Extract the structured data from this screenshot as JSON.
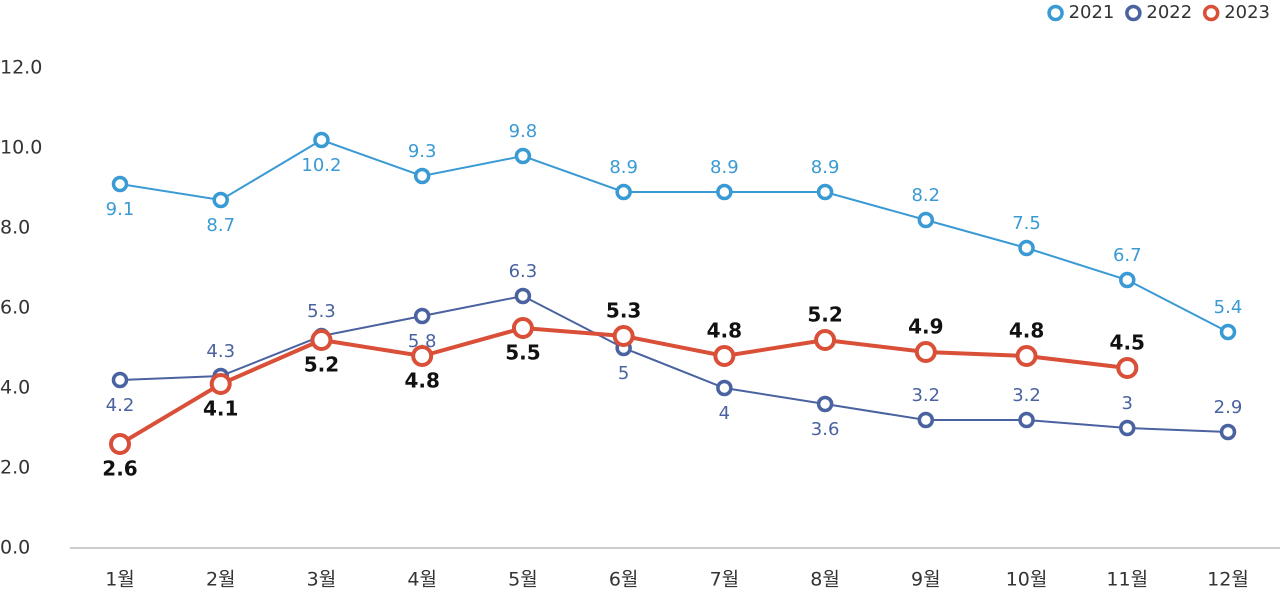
{
  "chart_data": {
    "type": "line",
    "categories": [
      "1월",
      "2월",
      "3월",
      "4월",
      "5월",
      "6월",
      "7월",
      "8월",
      "9월",
      "10월",
      "11월",
      "12월"
    ],
    "series": [
      {
        "name": "2021",
        "color": "#3a9ad4",
        "values": [
          9.1,
          8.7,
          10.2,
          9.3,
          9.8,
          8.9,
          8.9,
          8.9,
          8.2,
          7.5,
          6.7,
          5.4
        ]
      },
      {
        "name": "2022",
        "color": "#4a62a0",
        "values": [
          4.2,
          4.3,
          5.3,
          5.8,
          6.3,
          5.0,
          4.0,
          3.6,
          3.2,
          3.2,
          3.0,
          2.9
        ]
      },
      {
        "name": "2023",
        "color": "#d94f38",
        "values": [
          2.6,
          4.1,
          5.2,
          4.8,
          5.5,
          5.3,
          4.8,
          5.2,
          4.9,
          4.8,
          4.5,
          null
        ]
      }
    ],
    "ylim": [
      0,
      12
    ],
    "yticks": [
      {
        "value": 0,
        "label": "0.0"
      },
      {
        "value": 2,
        "label": "2.0"
      },
      {
        "value": 4,
        "label": "4.0"
      },
      {
        "value": 6,
        "label": "6.0"
      },
      {
        "value": 8,
        "label": "8.0"
      },
      {
        "value": 10,
        "label": "10.0"
      },
      {
        "value": 12,
        "label": "12.0"
      }
    ],
    "legend": "top-right"
  }
}
